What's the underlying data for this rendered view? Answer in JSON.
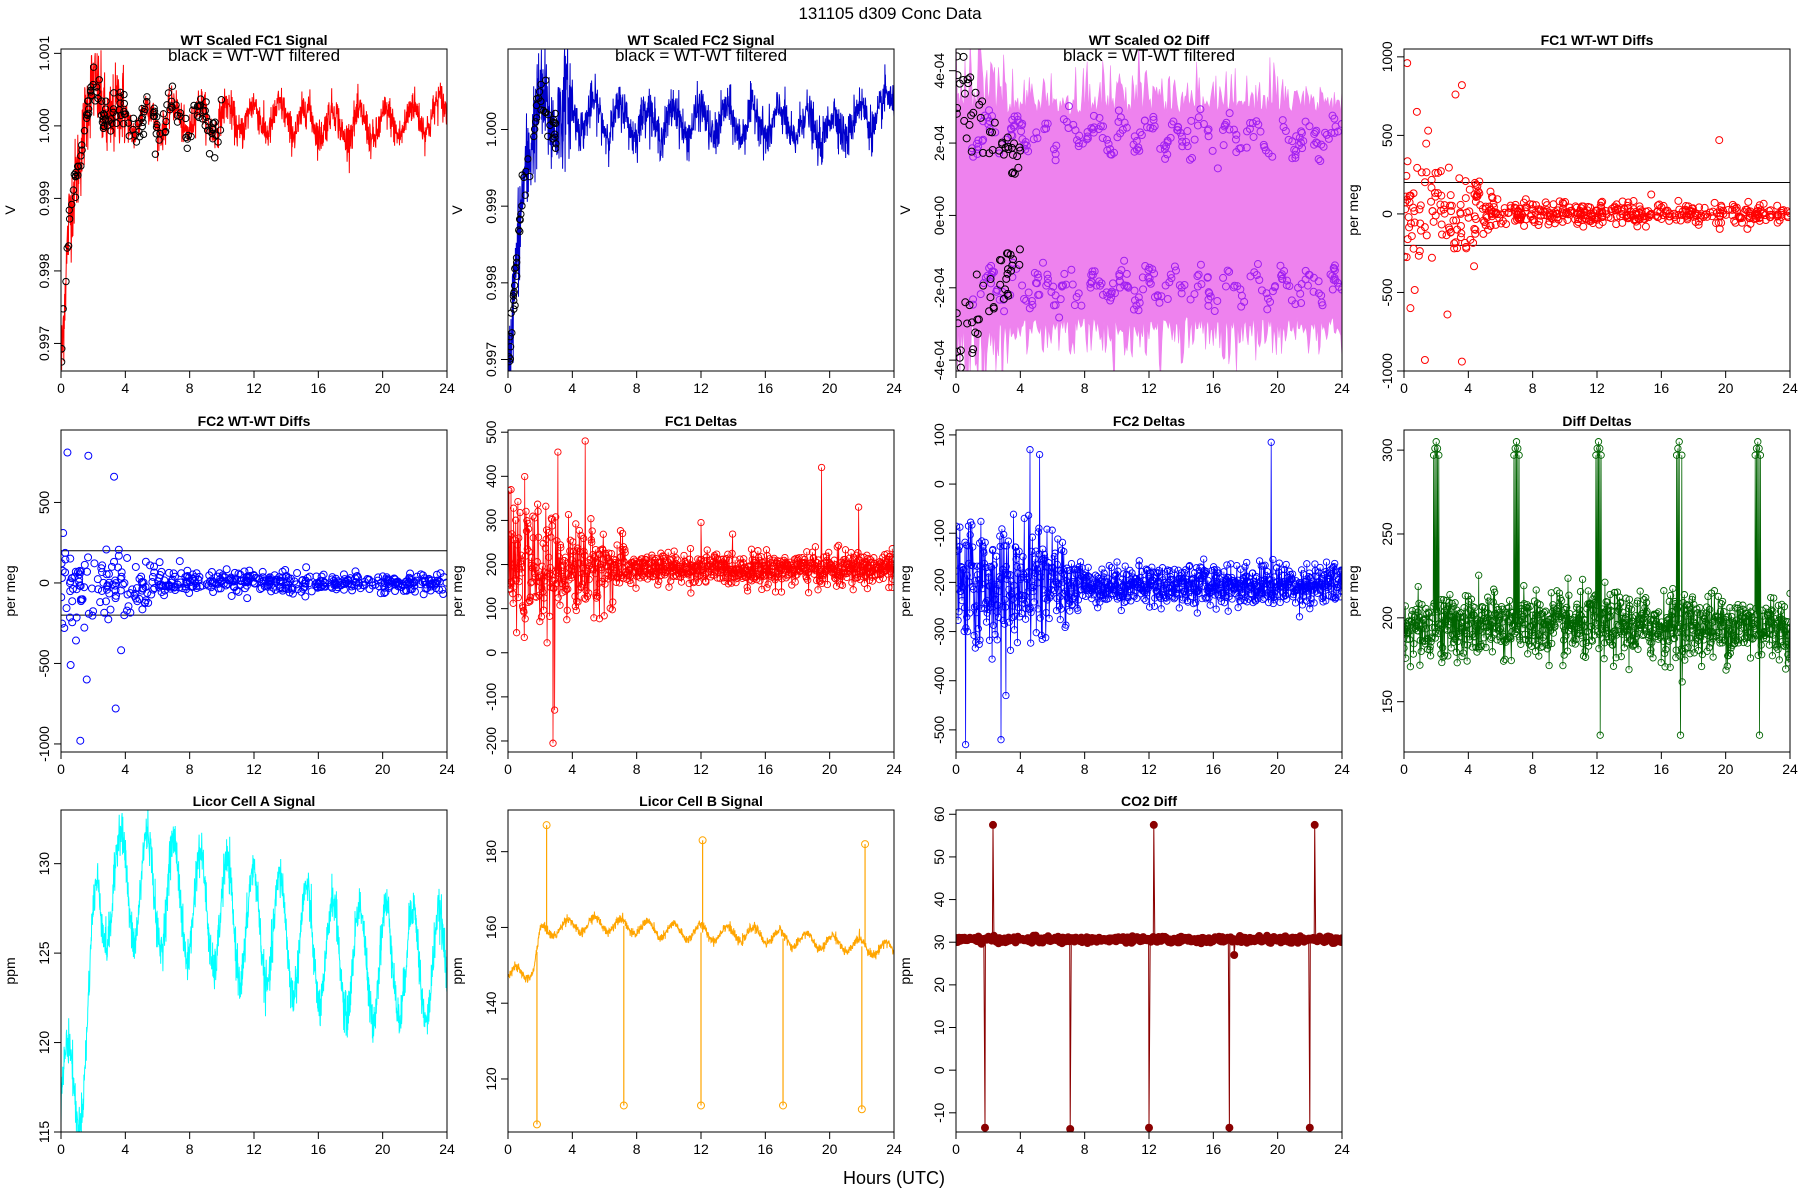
{
  "figure": {
    "suptitle": "131105    d309    Conc Data",
    "xlabel": "Hours (UTC)"
  },
  "chart_data": [
    {
      "id": "wt_fc1_signal",
      "type": "line",
      "title": "WT Scaled FC1 Signal",
      "ylabel": "V",
      "annotation": "black = WT-WT filtered",
      "color": "#ff0000",
      "point_color": "#000000",
      "xlim": [
        0,
        24
      ],
      "ylim": [
        0.99662,
        1.00106
      ],
      "xticks": [
        0,
        4,
        8,
        12,
        16,
        20,
        24
      ],
      "yticks": [
        0.997,
        0.998,
        0.999,
        1.0,
        1.001
      ],
      "ytick_labels": [
        "0.997",
        "0.998",
        "0.999",
        "1.000",
        "1.001"
      ],
      "baseline": [
        [
          0,
          0.9966
        ],
        [
          0.5,
          0.9985
        ],
        [
          1.0,
          0.9995
        ],
        [
          1.5,
          1.0002
        ],
        [
          2,
          1.0004
        ],
        [
          3,
          1.0002
        ],
        [
          4,
          1.0001
        ],
        [
          6,
          1.0001
        ],
        [
          10,
          1.0001
        ],
        [
          14,
          1.0001
        ],
        [
          18,
          1.0
        ],
        [
          20,
          1.0
        ],
        [
          22,
          1.0001
        ],
        [
          24,
          1.0002
        ]
      ],
      "noise": 0.00025,
      "osc_amp": 0.0002,
      "osc_period": 1.65,
      "early_noise": 0.0006,
      "points": {
        "x_max": 10,
        "count": 160,
        "noise": 0.00025
      }
    },
    {
      "id": "wt_fc2_signal",
      "type": "line",
      "title": "WT Scaled FC2 Signal",
      "ylabel": "V",
      "annotation": "black = WT-WT filtered",
      "color": "#0000cc",
      "point_color": "#000000",
      "xlim": [
        0,
        24
      ],
      "ylim": [
        0.99685,
        1.00105
      ],
      "xticks": [
        0,
        4,
        8,
        12,
        16,
        20,
        24
      ],
      "yticks": [
        0.997,
        0.998,
        0.999,
        1.0
      ],
      "ytick_labels": [
        "0.997",
        "0.998",
        "0.999",
        "1.000"
      ],
      "baseline": [
        [
          0,
          0.9967
        ],
        [
          0.5,
          0.998
        ],
        [
          1.0,
          0.9995
        ],
        [
          1.5,
          1.0
        ],
        [
          2,
          1.0002
        ],
        [
          4,
          1.0002
        ],
        [
          8,
          1.0001
        ],
        [
          12,
          1.0001
        ],
        [
          16,
          1.0001
        ],
        [
          20,
          1.0
        ],
        [
          24,
          1.0003
        ]
      ],
      "noise": 0.00028,
      "osc_amp": 0.0002,
      "osc_period": 1.65,
      "early_noise": 0.0007,
      "points": {
        "x_max": 3,
        "count": 60,
        "noise": 0.0003
      }
    },
    {
      "id": "wt_o2_diff",
      "type": "line",
      "title": "WT Scaled O2 Diff",
      "ylabel": "V",
      "annotation": "black = WT-WT filtered",
      "color": "#ee82ee",
      "point_color": "#a020f0",
      "xlim": [
        0,
        24
      ],
      "ylim": [
        -0.00043,
        0.00046
      ],
      "xticks": [
        0,
        4,
        8,
        12,
        16,
        20,
        24
      ],
      "yticks": [
        -0.0004,
        -0.0002,
        0.0,
        0.0002,
        0.0004
      ],
      "ytick_labels": [
        "-4e-04",
        "-2e-04",
        "0e+00",
        "2e-04",
        "4e-04"
      ],
      "band": [
        -0.00028,
        0.00028
      ],
      "bands_points": {
        "upper": 0.00022,
        "lower": -0.0002,
        "amp": 4e-05,
        "period": 1.65,
        "count": 420
      },
      "black_points": {
        "x_max": 4,
        "count": 90
      }
    },
    {
      "id": "fc1_wtwt_diffs",
      "type": "scatter",
      "title": "FC1 WT-WT Diffs",
      "ylabel": "per meg",
      "color": "#ff0000",
      "xlim": [
        0,
        24
      ],
      "ylim": [
        -1000,
        1050
      ],
      "xticks": [
        0,
        4,
        8,
        12,
        16,
        20,
        24
      ],
      "yticks": [
        -1000,
        -500,
        0,
        500,
        1000
      ],
      "ytick_labels": [
        "-1000",
        "-500",
        "0",
        "500",
        "1000"
      ],
      "hlines": [
        200,
        -200
      ],
      "spread": [
        [
          0,
          450
        ],
        [
          4,
          300
        ],
        [
          6,
          110
        ],
        [
          8,
          70
        ],
        [
          24,
          60
        ]
      ],
      "count": 520,
      "outliers": [
        [
          0.2,
          960
        ],
        [
          0.8,
          650
        ],
        [
          1.5,
          530
        ],
        [
          3.2,
          760
        ],
        [
          3.6,
          820
        ],
        [
          19.6,
          470
        ],
        [
          1.3,
          -930
        ],
        [
          3.6,
          -940
        ],
        [
          2.7,
          -640
        ],
        [
          0.4,
          -600
        ]
      ]
    },
    {
      "id": "fc2_wtwt_diffs",
      "type": "scatter",
      "title": "FC2 WT-WT Diffs",
      "ylabel": "per meg",
      "color": "#0000ff",
      "xlim": [
        0,
        24
      ],
      "ylim": [
        -1050,
        950
      ],
      "xticks": [
        0,
        4,
        8,
        12,
        16,
        20,
        24
      ],
      "yticks": [
        -1000,
        -500,
        0,
        500
      ],
      "ytick_labels": [
        "-1000",
        "-500",
        "0",
        "500"
      ],
      "hlines": [
        200,
        -200
      ],
      "spread": [
        [
          0,
          380
        ],
        [
          4,
          260
        ],
        [
          6,
          110
        ],
        [
          8,
          70
        ],
        [
          24,
          60
        ]
      ],
      "count": 520,
      "outliers": [
        [
          0.4,
          810
        ],
        [
          1.7,
          790
        ],
        [
          3.3,
          660
        ],
        [
          1.2,
          -980
        ],
        [
          3.4,
          -780
        ],
        [
          1.6,
          -600
        ],
        [
          0.6,
          -510
        ]
      ]
    },
    {
      "id": "fc1_deltas",
      "type": "line",
      "title": "FC1 Deltas",
      "ylabel": "per meg",
      "color": "#ff0000",
      "xlim": [
        0,
        24
      ],
      "ylim": [
        -225,
        505
      ],
      "xticks": [
        0,
        4,
        8,
        12,
        16,
        20,
        24
      ],
      "yticks": [
        -200,
        -100,
        0,
        100,
        200,
        300,
        400,
        500
      ],
      "ytick_labels": [
        "-200",
        "-100",
        "0",
        "100",
        "200",
        "300",
        "400",
        "500"
      ],
      "center": 190,
      "spread": [
        [
          0,
          140
        ],
        [
          6,
          90
        ],
        [
          8,
          35
        ],
        [
          24,
          40
        ]
      ],
      "count": 900,
      "spikes": [
        [
          2.8,
          -205
        ],
        [
          2.9,
          -130
        ],
        [
          4.8,
          480
        ],
        [
          3.1,
          455
        ],
        [
          19.5,
          420
        ],
        [
          12.0,
          295
        ],
        [
          21.8,
          330
        ]
      ]
    },
    {
      "id": "fc2_deltas",
      "type": "line",
      "title": "FC2 Deltas",
      "ylabel": "per meg",
      "color": "#0000ff",
      "xlim": [
        0,
        24
      ],
      "ylim": [
        -545,
        110
      ],
      "xticks": [
        0,
        4,
        8,
        12,
        16,
        20,
        24
      ],
      "yticks": [
        -500,
        -400,
        -300,
        -200,
        -100,
        0,
        100
      ],
      "ytick_labels": [
        "-500",
        "-400",
        "-300",
        "-200",
        "-100",
        "0",
        "100"
      ],
      "center": -205,
      "spread": [
        [
          0,
          140
        ],
        [
          6,
          100
        ],
        [
          8,
          40
        ],
        [
          24,
          45
        ]
      ],
      "count": 900,
      "spikes": [
        [
          0.6,
          -530
        ],
        [
          2.8,
          -520
        ],
        [
          3.1,
          -430
        ],
        [
          4.6,
          70
        ],
        [
          5.2,
          60
        ],
        [
          19.6,
          85
        ]
      ]
    },
    {
      "id": "diff_deltas",
      "type": "line",
      "title": "Diff Deltas",
      "ylabel": "per meg",
      "color": "#006400",
      "xlim": [
        0,
        24
      ],
      "ylim": [
        120,
        312
      ],
      "xticks": [
        0,
        4,
        8,
        12,
        16,
        20,
        24
      ],
      "yticks": [
        150,
        200,
        250,
        300
      ],
      "ytick_labels": [
        "150",
        "200",
        "250",
        "300"
      ],
      "center": 195,
      "spread": [
        [
          0,
          20
        ],
        [
          24,
          20
        ]
      ],
      "count": 900,
      "spike_times": [
        2.0,
        7.0,
        12.1,
        17.1,
        22.0
      ],
      "spike_high": 305,
      "spike_low": 130
    },
    {
      "id": "licor_cell_a",
      "type": "line",
      "title": "Licor Cell A Signal",
      "ylabel": "ppm",
      "color": "#00ffff",
      "xlim": [
        0,
        24
      ],
      "ylim": [
        115,
        133
      ],
      "xticks": [
        0,
        4,
        8,
        12,
        16,
        20,
        24
      ],
      "yticks": [
        115,
        120,
        125,
        130
      ],
      "ytick_labels": [
        "115",
        "120",
        "125",
        "130"
      ],
      "baseline": [
        [
          0,
          116.5
        ],
        [
          1,
          117.5
        ],
        [
          1.6,
          121
        ],
        [
          2.3,
          127
        ],
        [
          3,
          129
        ],
        [
          6,
          128.5
        ],
        [
          10,
          127
        ],
        [
          14,
          126
        ],
        [
          18,
          124.5
        ],
        [
          22,
          124.5
        ],
        [
          24,
          124
        ]
      ],
      "osc_amp": 3.2,
      "osc_period": 1.65,
      "noise": 1.2
    },
    {
      "id": "licor_cell_b",
      "type": "line",
      "title": "Licor Cell B Signal",
      "ylabel": "ppm",
      "color": "#ffa500",
      "xlim": [
        0,
        24
      ],
      "ylim": [
        106,
        191
      ],
      "xticks": [
        0,
        4,
        8,
        12,
        16,
        20,
        24
      ],
      "yticks": [
        120,
        140,
        160,
        180
      ],
      "ytick_labels": [
        "120",
        "140",
        "160",
        "180"
      ],
      "baseline": [
        [
          0,
          147
        ],
        [
          1.6,
          149
        ],
        [
          2.0,
          158
        ],
        [
          3,
          160
        ],
        [
          6,
          161
        ],
        [
          10,
          159
        ],
        [
          16,
          158
        ],
        [
          17.2,
          157
        ],
        [
          20,
          156
        ],
        [
          24,
          154
        ]
      ],
      "osc_amp": 2.0,
      "osc_period": 1.65,
      "noise": 1.2,
      "spikes": [
        [
          1.8,
          108
        ],
        [
          2.4,
          187
        ],
        [
          7.2,
          113
        ],
        [
          12.1,
          183
        ],
        [
          12.0,
          113
        ],
        [
          17.1,
          113
        ],
        [
          22.2,
          182
        ],
        [
          22.0,
          112
        ]
      ]
    },
    {
      "id": "co2_diff",
      "type": "line",
      "title": "CO2 Diff",
      "ylabel": "ppm",
      "color": "#8b0000",
      "xlim": [
        0,
        24
      ],
      "ylim": [
        -14.5,
        61
      ],
      "xticks": [
        0,
        4,
        8,
        12,
        16,
        20,
        24
      ],
      "yticks": [
        -10,
        0,
        10,
        20,
        30,
        40,
        50,
        60
      ],
      "ytick_labels": [
        "-10",
        "0",
        "10",
        "20",
        "30",
        "40",
        "50",
        "60"
      ],
      "center": 30.6,
      "spikes": [
        [
          1.8,
          -13.5
        ],
        [
          2.3,
          57.5
        ],
        [
          7.1,
          -13.8
        ],
        [
          12.0,
          -13.5
        ],
        [
          12.3,
          57.5
        ],
        [
          17.0,
          -13.5
        ],
        [
          17.3,
          27
        ],
        [
          22.0,
          -13.5
        ],
        [
          22.3,
          57.5
        ]
      ]
    }
  ]
}
